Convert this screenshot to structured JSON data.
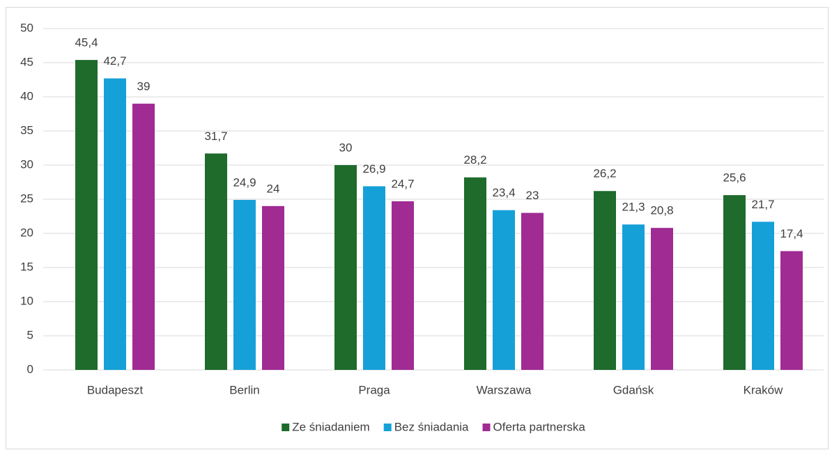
{
  "chart_data": {
    "type": "bar",
    "categories": [
      "Budapeszt",
      "Berlin",
      "Praga",
      "Warszawa",
      "Gdańsk",
      "Kraków"
    ],
    "series": [
      {
        "name": "Ze śniadaniem",
        "color": "#1e6b2c",
        "values": [
          45.4,
          31.7,
          30,
          28.2,
          26.2,
          25.6
        ],
        "value_labels": [
          "45,4",
          "31,7",
          "30",
          "28,2",
          "26,2",
          "25,6"
        ]
      },
      {
        "name": "Bez śniadania",
        "color": "#16a0d8",
        "values": [
          42.7,
          24.9,
          26.9,
          23.4,
          21.3,
          21.7
        ],
        "value_labels": [
          "42,7",
          "24,9",
          "26,9",
          "23,4",
          "21,3",
          "21,7"
        ]
      },
      {
        "name": "Oferta partnerska",
        "color": "#a02b93",
        "values": [
          39,
          24,
          24.7,
          23,
          20.8,
          17.4
        ],
        "value_labels": [
          "39",
          "24",
          "24,7",
          "23",
          "20,8",
          "17,4"
        ]
      }
    ],
    "ylim": [
      0,
      50
    ],
    "yticks": [
      0,
      5,
      10,
      15,
      20,
      25,
      30,
      35,
      40,
      45,
      50
    ],
    "grid": true,
    "legend": "bottom"
  }
}
